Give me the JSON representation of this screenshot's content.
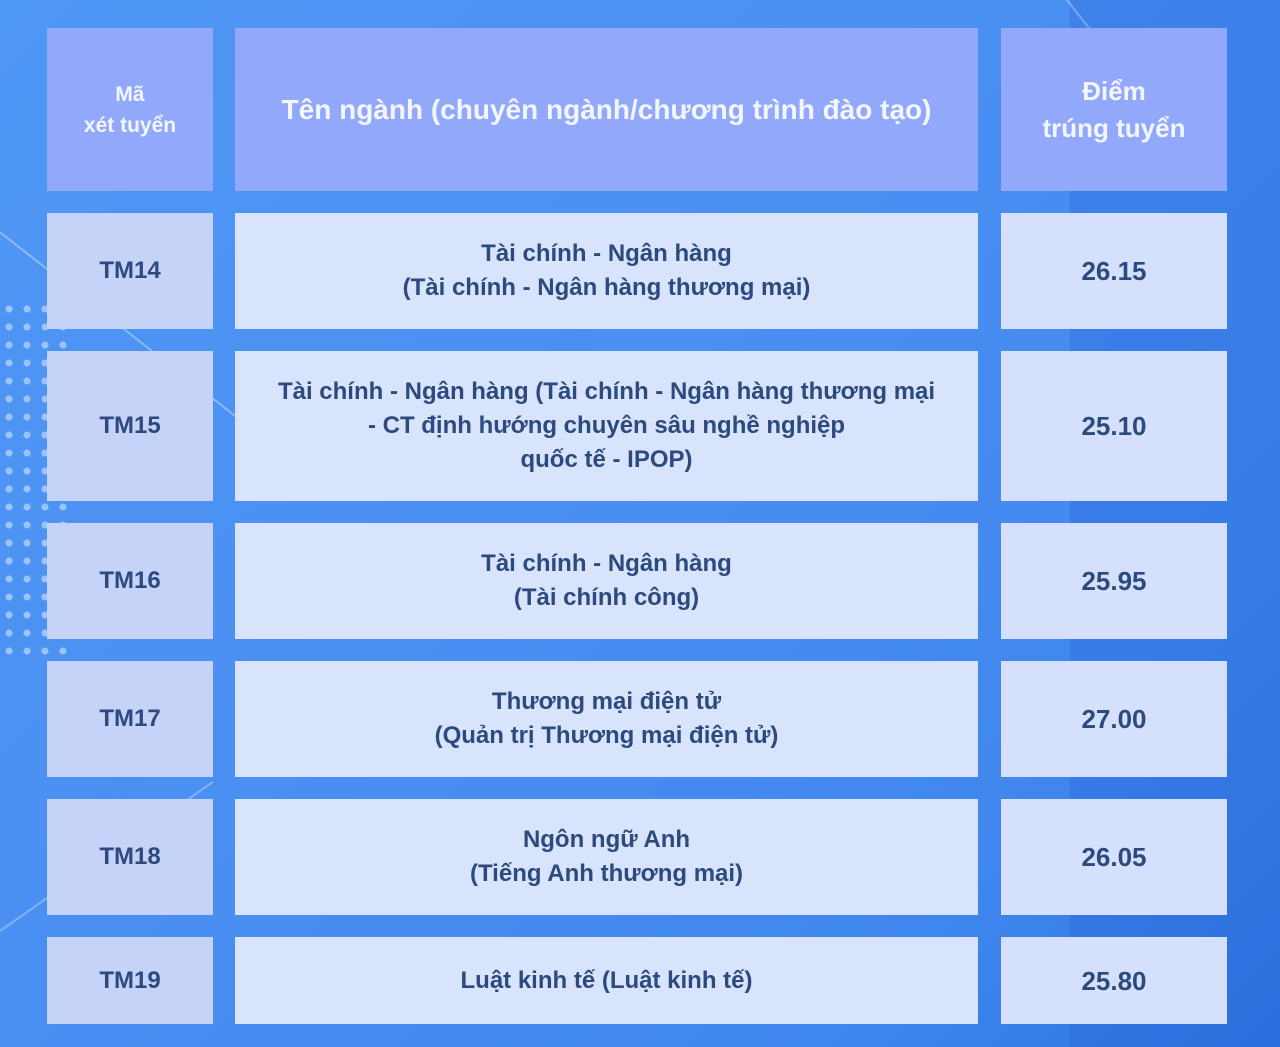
{
  "header": {
    "code": "Mã\nxét tuyển",
    "name": "Tên ngành (chuyên ngành/chương trình đào tạo)",
    "score": "Điểm\ntrúng tuyển"
  },
  "rows": [
    {
      "code": "TM14",
      "name": "Tài chính - Ngân hàng\n(Tài chính - Ngân hàng thương mại)",
      "score": "26.15"
    },
    {
      "code": "TM15",
      "name": "Tài chính - Ngân hàng (Tài chính - Ngân hàng thương mại\n- CT định hướng chuyên sâu nghề nghiệp\nquốc tế - IPOP)",
      "score": "25.10"
    },
    {
      "code": "TM16",
      "name": "Tài chính - Ngân hàng\n(Tài chính công)",
      "score": "25.95"
    },
    {
      "code": "TM17",
      "name": "Thương mại điện tử\n(Quản trị Thương mại điện tử)",
      "score": "27.00"
    },
    {
      "code": "TM18",
      "name": "Ngôn ngữ Anh\n(Tiếng Anh thương mại)",
      "score": "26.05"
    },
    {
      "code": "TM19",
      "name": "Luật kinh tế (Luật kinh tế)",
      "score": "25.80"
    }
  ],
  "colors": {
    "background": "#4a8ff2",
    "header_cell": "#92a9fb",
    "code_cell": "#c6d3f9",
    "body_cell": "#d8e3fc",
    "text": "#2c4a7e"
  }
}
